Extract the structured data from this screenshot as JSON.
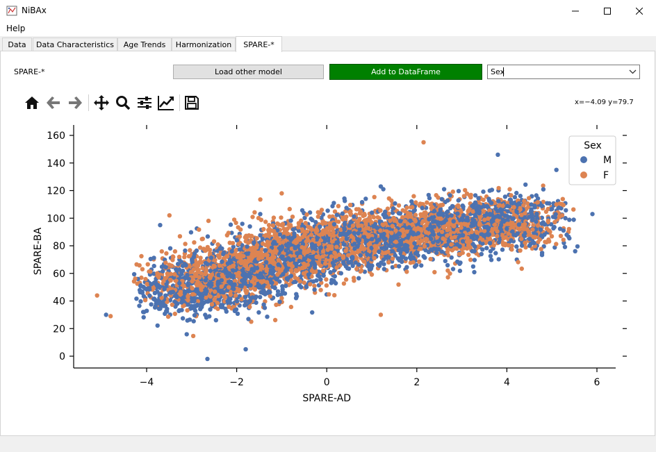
{
  "window": {
    "title": "NiBAx"
  },
  "menu": {
    "items": [
      "Help"
    ]
  },
  "tabs": [
    {
      "label": "Data"
    },
    {
      "label": "Data Characteristics"
    },
    {
      "label": "Age Trends"
    },
    {
      "label": "Harmonization"
    },
    {
      "label": "SPARE-*",
      "active": true
    }
  ],
  "controls": {
    "section_label": "SPARE-*",
    "load_button": "Load other model",
    "add_button": "Add to DataFrame",
    "combo_value": "Sex"
  },
  "toolbar": {
    "icons": [
      "home-icon",
      "back-arrow-icon",
      "forward-arrow-icon",
      "pan-icon",
      "zoom-icon",
      "configure-subplots-icon",
      "edit-axis-icon",
      "save-icon"
    ],
    "coordinates": "x=−4.09 y=79.7"
  },
  "colors": {
    "M": "#4c72b0",
    "F": "#dd8452",
    "add_button": "#008000"
  },
  "chart_data": {
    "type": "scatter",
    "xlabel": "SPARE-AD",
    "ylabel": "SPARE-BA",
    "xlim": [
      -4.4,
      6.1
    ],
    "ylim": [
      -5,
      163
    ],
    "x_ticks": [
      "−4",
      "−2",
      "0",
      "2",
      "4",
      "6"
    ],
    "y_ticks": [
      "0",
      "20",
      "40",
      "60",
      "80",
      "100",
      "120",
      "140",
      "160"
    ],
    "legend": {
      "title": "Sex",
      "position": "top-right",
      "entries": [
        "M",
        "F"
      ]
    },
    "series": [
      {
        "name": "M",
        "color": "#4c72b0",
        "cluster": [
          [
            -3.0,
            48
          ],
          [
            -1.8,
            60
          ],
          [
            -0.5,
            75
          ],
          [
            1.0,
            85
          ],
          [
            2.5,
            90
          ],
          [
            4.0,
            98
          ]
        ]
      },
      {
        "name": "F",
        "color": "#dd8452",
        "cluster": [
          [
            -2.7,
            55
          ],
          [
            -1.3,
            68
          ],
          [
            -0.6,
            80
          ],
          [
            0.9,
            88
          ],
          [
            2.3,
            92
          ],
          [
            3.8,
            96
          ]
        ]
      }
    ],
    "outliers": [
      {
        "series": "M",
        "x": -4.9,
        "y": 30
      },
      {
        "series": "M",
        "x": -2.65,
        "y": -2
      },
      {
        "series": "M",
        "x": -1.8,
        "y": 5
      },
      {
        "series": "M",
        "x": -3.7,
        "y": 95
      },
      {
        "series": "M",
        "x": 3.8,
        "y": 146
      },
      {
        "series": "M",
        "x": 5.1,
        "y": 135
      },
      {
        "series": "M",
        "x": 5.9,
        "y": 103
      },
      {
        "series": "M",
        "x": 5.3,
        "y": 100
      },
      {
        "series": "M",
        "x": 1.2,
        "y": 123
      },
      {
        "series": "F",
        "x": 2.15,
        "y": 155
      },
      {
        "series": "F",
        "x": -5.1,
        "y": 44
      },
      {
        "series": "F",
        "x": -4.8,
        "y": 29
      },
      {
        "series": "F",
        "x": 5.1,
        "y": 110
      },
      {
        "series": "F",
        "x": 1.2,
        "y": 30
      },
      {
        "series": "F",
        "x": -1.0,
        "y": 118
      }
    ]
  }
}
